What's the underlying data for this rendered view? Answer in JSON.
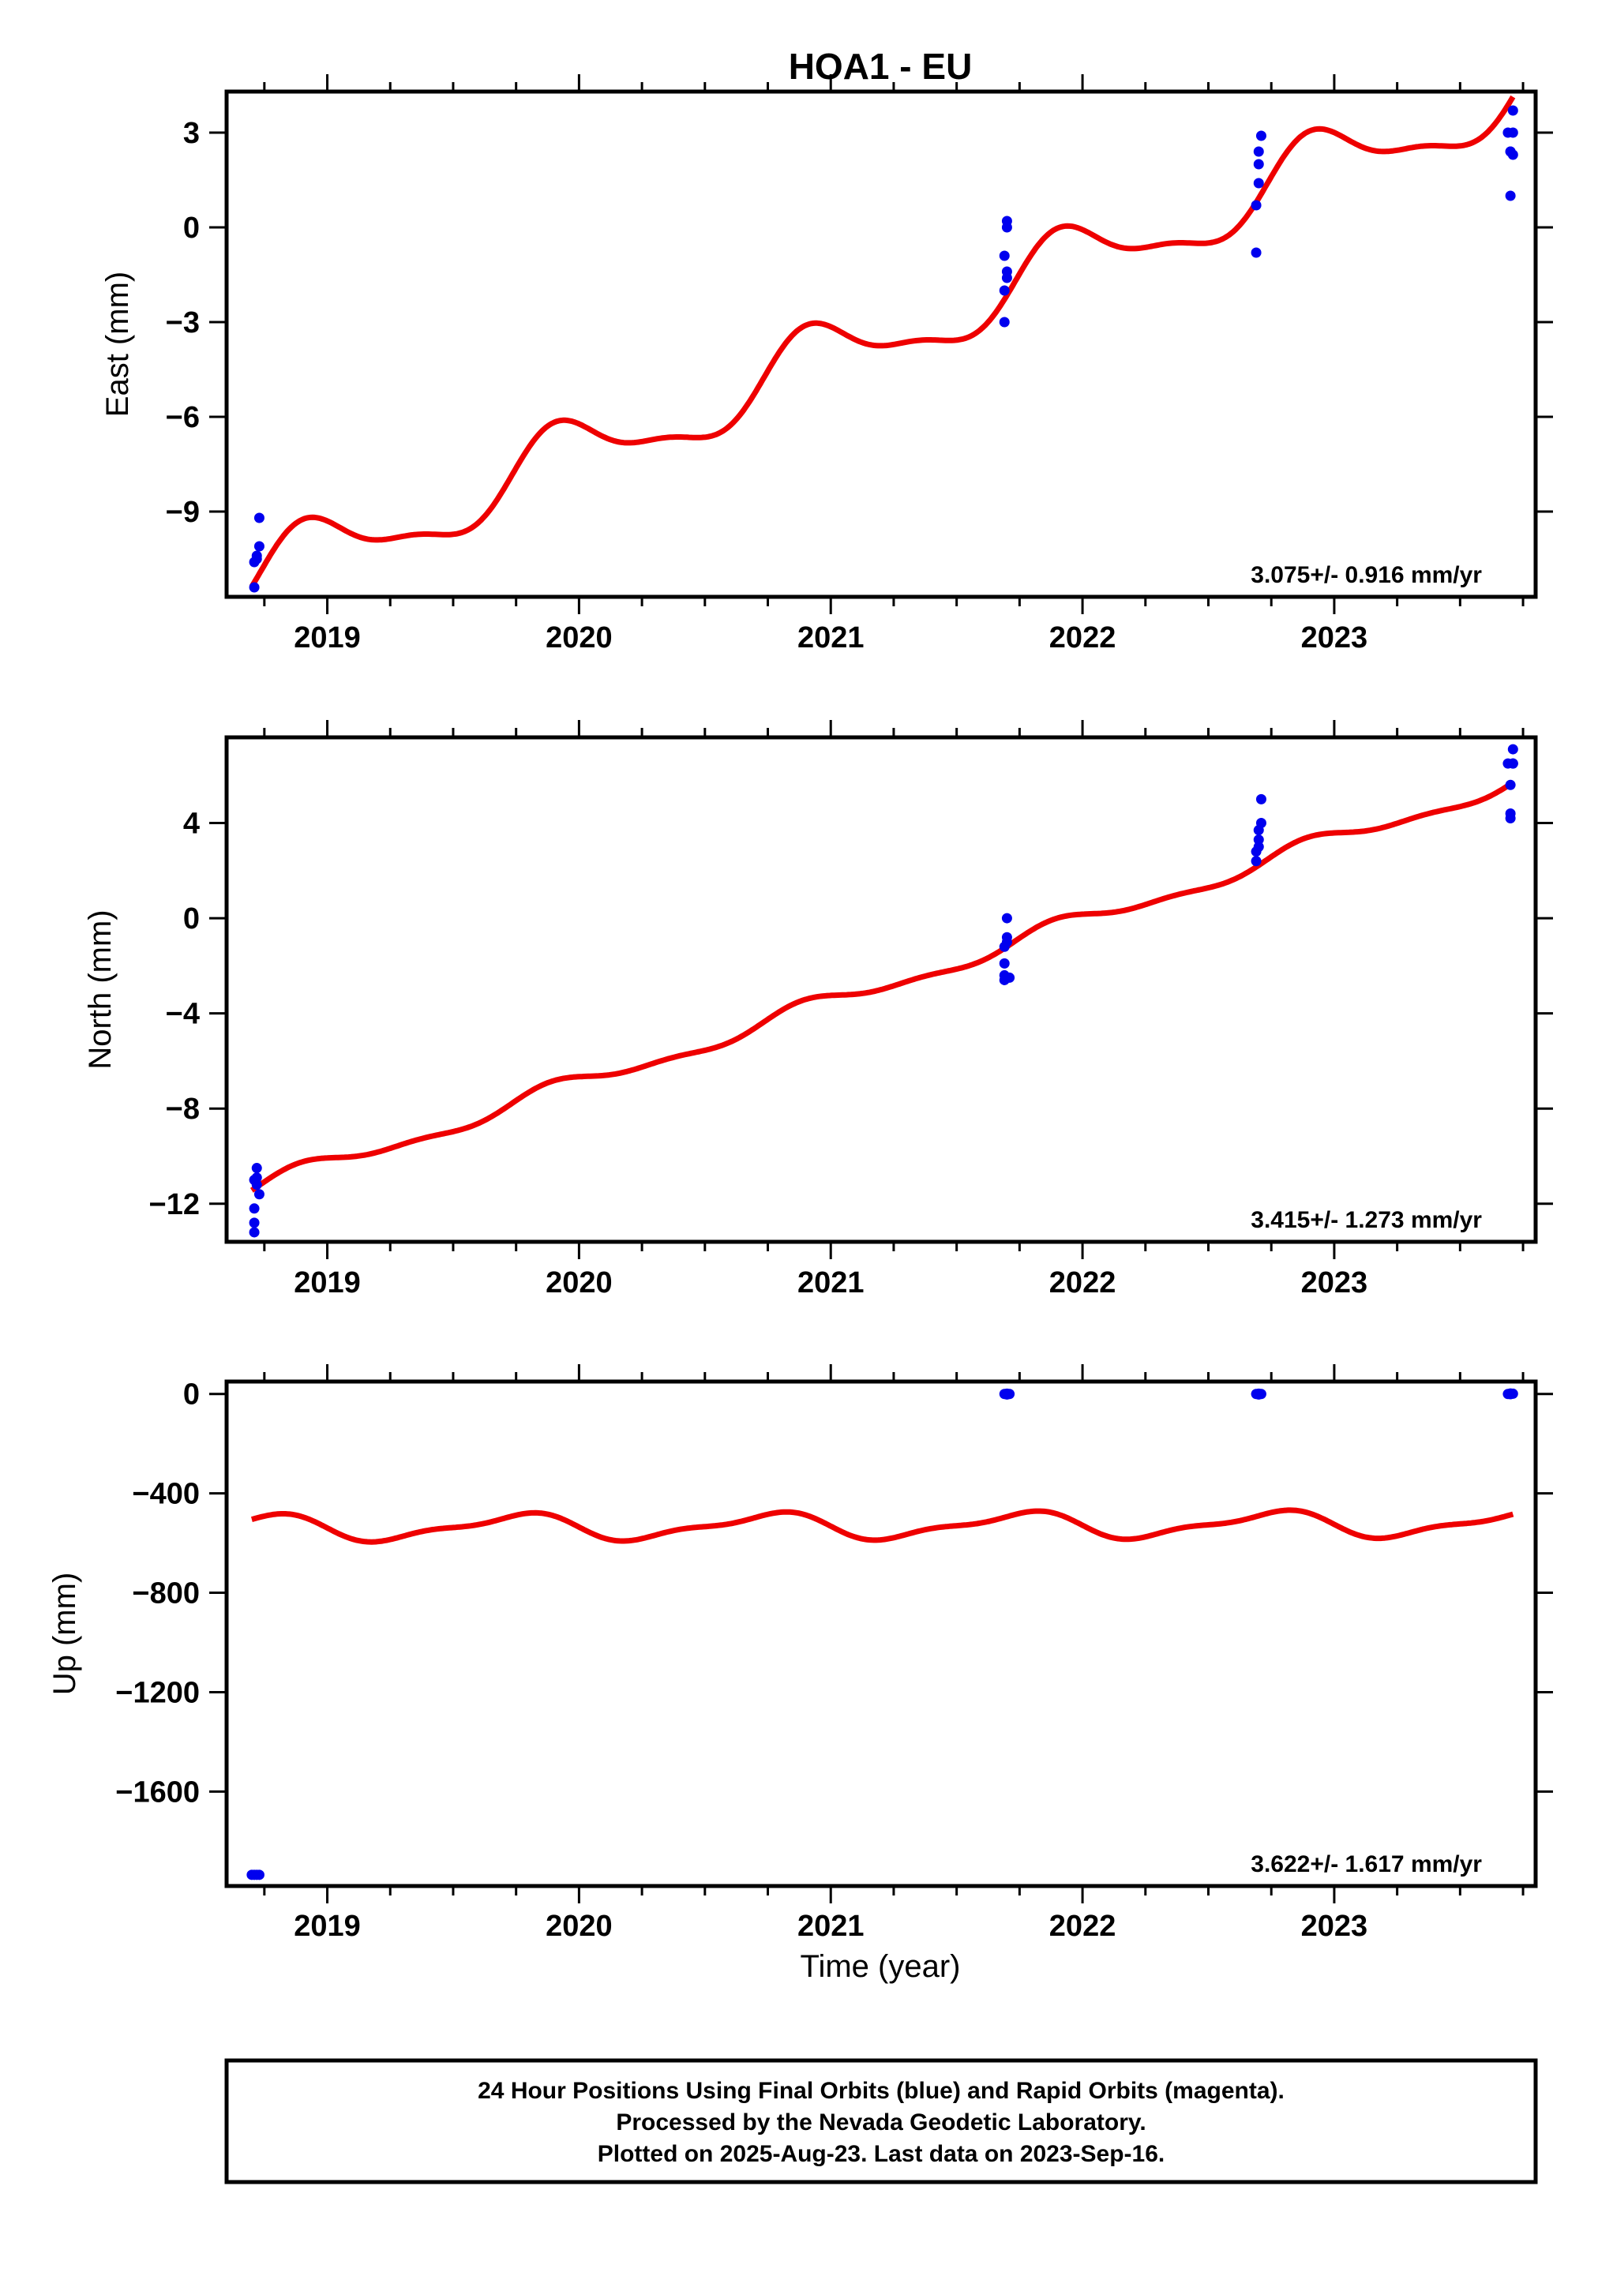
{
  "figure": {
    "title": "HOA1 - EU",
    "xlabel": "Time (year)",
    "footer": [
      "24 Hour Positions Using Final Orbits (blue) and Rapid Orbits (magenta).",
      "Processed by the Nevada Geodetic Laboratory.",
      "Plotted on 2025-Aug-23. Last data on 2023-Sep-16."
    ],
    "colors": {
      "final_orbits": "#0000ee",
      "model": "#ee0000",
      "axes": "#000000"
    }
  },
  "chart_data": [
    {
      "type": "scatter",
      "name": "east",
      "ylabel": "East (mm)",
      "xlim": [
        2018.6,
        2023.8
      ],
      "ylim": [
        -11.7,
        4.3
      ],
      "x_ticks": [
        2019,
        2020,
        2021,
        2022,
        2023
      ],
      "x_tick_labels": [
        "2019",
        "2020",
        "2021",
        "2022",
        "2023"
      ],
      "y_ticks": [
        -9,
        -6,
        -3,
        0,
        3
      ],
      "y_tick_labels": [
        "−9",
        "−6",
        "−3",
        "0",
        "3"
      ],
      "rate_text": "3.075+/- 0.916 mm/yr",
      "points": [
        [
          2018.71,
          -11.4
        ],
        [
          2018.71,
          -10.6
        ],
        [
          2018.72,
          -10.4
        ],
        [
          2018.72,
          -10.5
        ],
        [
          2018.73,
          -10.1
        ],
        [
          2018.73,
          -9.2
        ],
        [
          2021.69,
          -3.0
        ],
        [
          2021.69,
          -2.0
        ],
        [
          2021.69,
          -0.9
        ],
        [
          2021.7,
          -1.6
        ],
        [
          2021.7,
          -1.4
        ],
        [
          2021.7,
          0.0
        ],
        [
          2021.7,
          0.2
        ],
        [
          2022.69,
          -0.8
        ],
        [
          2022.69,
          0.7
        ],
        [
          2022.7,
          1.4
        ],
        [
          2022.7,
          2.0
        ],
        [
          2022.7,
          2.4
        ],
        [
          2022.71,
          2.9
        ],
        [
          2023.69,
          3.0
        ],
        [
          2023.7,
          1.0
        ],
        [
          2023.7,
          2.4
        ],
        [
          2023.7,
          2.4
        ],
        [
          2023.71,
          3.0
        ],
        [
          2023.71,
          2.3
        ],
        [
          2023.71,
          3.7
        ]
      ],
      "model": {
        "t0": 2018.7,
        "t1": 2023.71,
        "a": -11.2,
        "b": 3.075,
        "c": -0.35,
        "d": 0.98,
        "e": -0.35,
        "f": 0.0
      }
    },
    {
      "type": "scatter",
      "name": "north",
      "ylabel": "North (mm)",
      "xlim": [
        2018.6,
        2023.8
      ],
      "ylim": [
        -13.6,
        7.6
      ],
      "x_ticks": [
        2019,
        2020,
        2021,
        2022,
        2023
      ],
      "x_tick_labels": [
        "2019",
        "2020",
        "2021",
        "2022",
        "2023"
      ],
      "y_ticks": [
        -12,
        -8,
        -4,
        0,
        4
      ],
      "y_tick_labels": [
        "−12",
        "−8",
        "−4",
        "0",
        "4"
      ],
      "rate_text": "3.415+/- 1.273 mm/yr",
      "points": [
        [
          2018.71,
          -13.2
        ],
        [
          2018.71,
          -12.8
        ],
        [
          2018.71,
          -12.2
        ],
        [
          2018.71,
          -11.0
        ],
        [
          2018.72,
          -10.9
        ],
        [
          2018.72,
          -11.2
        ],
        [
          2018.72,
          -10.5
        ],
        [
          2018.73,
          -11.6
        ],
        [
          2021.69,
          -2.6
        ],
        [
          2021.69,
          -2.4
        ],
        [
          2021.69,
          -1.9
        ],
        [
          2021.69,
          -1.2
        ],
        [
          2021.7,
          -0.8
        ],
        [
          2021.7,
          -1.0
        ],
        [
          2021.7,
          0.0
        ],
        [
          2021.71,
          -2.5
        ],
        [
          2022.69,
          2.4
        ],
        [
          2022.69,
          2.8
        ],
        [
          2022.7,
          3.0
        ],
        [
          2022.7,
          3.3
        ],
        [
          2022.7,
          3.7
        ],
        [
          2022.71,
          4.0
        ],
        [
          2022.71,
          5.0
        ],
        [
          2023.69,
          6.5
        ],
        [
          2023.7,
          4.4
        ],
        [
          2023.7,
          4.2
        ],
        [
          2023.7,
          5.6
        ],
        [
          2023.71,
          6.5
        ],
        [
          2023.71,
          7.1
        ],
        [
          2023.71,
          6.5
        ]
      ],
      "model": {
        "t0": 2018.7,
        "t1": 2023.71,
        "a": -11.4,
        "b": 3.415,
        "c": -0.15,
        "d": 0.3,
        "e": -0.15,
        "f": 0.0
      }
    },
    {
      "type": "scatter",
      "name": "up",
      "ylabel": "Up (mm)",
      "xlim": [
        2018.6,
        2023.8
      ],
      "ylim": [
        -1980,
        50
      ],
      "x_ticks": [
        2019,
        2020,
        2021,
        2022,
        2023
      ],
      "x_tick_labels": [
        "2019",
        "2020",
        "2021",
        "2022",
        "2023"
      ],
      "y_ticks": [
        -1600,
        -1200,
        -800,
        -400,
        0
      ],
      "y_tick_labels": [
        "−1600",
        "−1200",
        "−800",
        "−400",
        "0"
      ],
      "rate_text": "3.622+/- 1.617 mm/yr",
      "points": [
        [
          2018.7,
          -1935
        ],
        [
          2018.71,
          -1935
        ],
        [
          2018.72,
          -1935
        ],
        [
          2018.73,
          -1935
        ],
        [
          2021.69,
          0
        ],
        [
          2021.7,
          -2
        ],
        [
          2021.7,
          1
        ],
        [
          2021.71,
          0
        ],
        [
          2022.69,
          0
        ],
        [
          2022.7,
          -2
        ],
        [
          2022.7,
          1
        ],
        [
          2022.71,
          0
        ],
        [
          2023.69,
          0
        ],
        [
          2023.7,
          2
        ],
        [
          2023.7,
          -1
        ],
        [
          2023.71,
          1
        ]
      ],
      "model": {
        "t0": 2018.7,
        "t1": 2023.71,
        "a": -540,
        "b": 3.622,
        "c": -48,
        "d": 0.0,
        "e": -18,
        "f": -0.3
      }
    }
  ]
}
